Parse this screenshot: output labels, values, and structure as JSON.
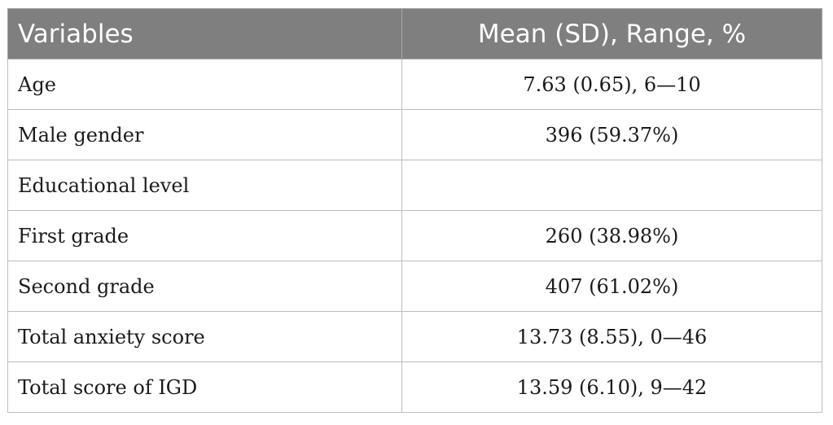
{
  "table": {
    "headers": [
      "Variables",
      "Mean (SD), Range, %"
    ],
    "rows": [
      {
        "variable": "Age",
        "value": "7.63 (0.65), 6—10"
      },
      {
        "variable": "Male gender",
        "value": "396 (59.37%)"
      },
      {
        "variable": "Educational level",
        "value": ""
      },
      {
        "variable": "First grade",
        "value": "260 (38.98%)"
      },
      {
        "variable": "Second grade",
        "value": "407 (61.02%)"
      },
      {
        "variable": "Total anxiety score",
        "value": "13.73 (8.55), 0—46"
      },
      {
        "variable": "Total score of IGD",
        "value": "13.59 (6.10), 9—42"
      }
    ]
  },
  "colors": {
    "header_bg": "#7f7f7f",
    "header_text": "#ffffff",
    "border": "#bdbdbd",
    "body_text": "#1a1a1a"
  }
}
